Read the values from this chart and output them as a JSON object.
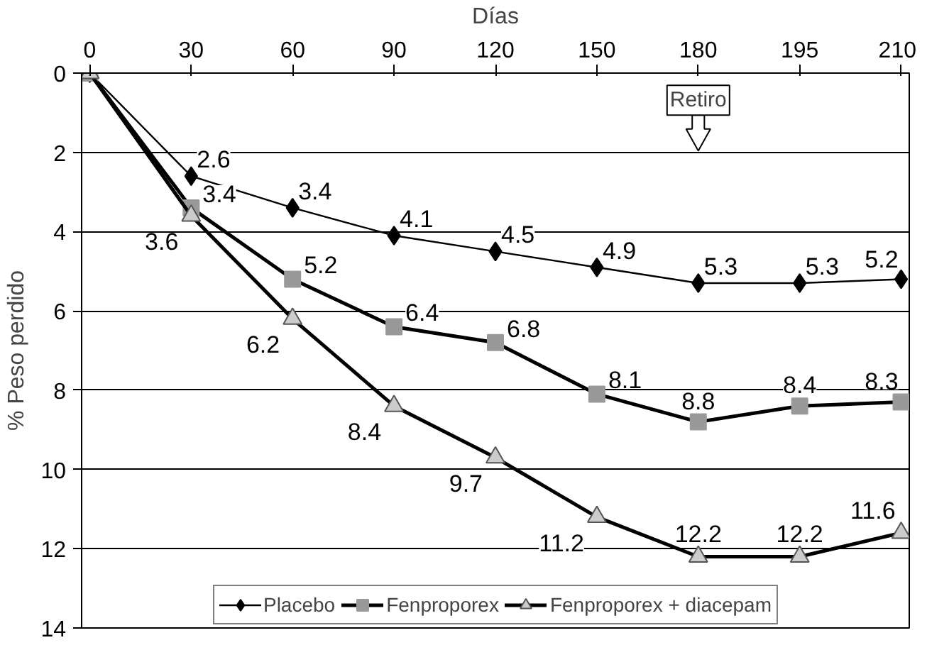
{
  "chart_data": {
    "type": "line",
    "xlabel": "Días",
    "ylabel": "% Peso perdido",
    "categories": [
      "0",
      "30",
      "60",
      "90",
      "120",
      "150",
      "180",
      "195",
      "210"
    ],
    "ylim": [
      14,
      0
    ],
    "yticks": [
      0,
      2,
      4,
      6,
      8,
      10,
      12,
      14
    ],
    "grid": "y",
    "legend": "bottom",
    "line_style": "solid",
    "series": [
      {
        "name": "Placebo",
        "color": "#000000",
        "marker": "diamond",
        "values": [
          0,
          2.6,
          3.4,
          4.1,
          4.5,
          4.9,
          5.3,
          5.3,
          5.2
        ],
        "value_labels": [
          null,
          "2.6",
          "3.4",
          "4.1",
          "4.5",
          "4.9",
          "5.3",
          "5.3",
          "5.2"
        ]
      },
      {
        "name": "Fenproporex",
        "color": "#999999",
        "marker": "square",
        "values": [
          0,
          3.4,
          5.2,
          6.4,
          6.8,
          8.1,
          8.8,
          8.4,
          8.3
        ],
        "value_labels": [
          null,
          "3.4",
          "5.2",
          "6.4",
          "6.8",
          "8.1",
          "8.8",
          "8.4",
          "8.3"
        ]
      },
      {
        "name": "Fenproporex + diacepam",
        "color": "#cccccc",
        "marker": "triangle",
        "values": [
          0,
          3.6,
          6.2,
          8.4,
          9.7,
          11.2,
          12.2,
          12.2,
          11.6
        ],
        "value_labels": [
          null,
          "3.6",
          "6.2",
          "8.4",
          "9.7",
          "11.2",
          "12.2",
          "12.2",
          "11.6"
        ]
      }
    ],
    "annotations": [
      "Retiro"
    ]
  }
}
